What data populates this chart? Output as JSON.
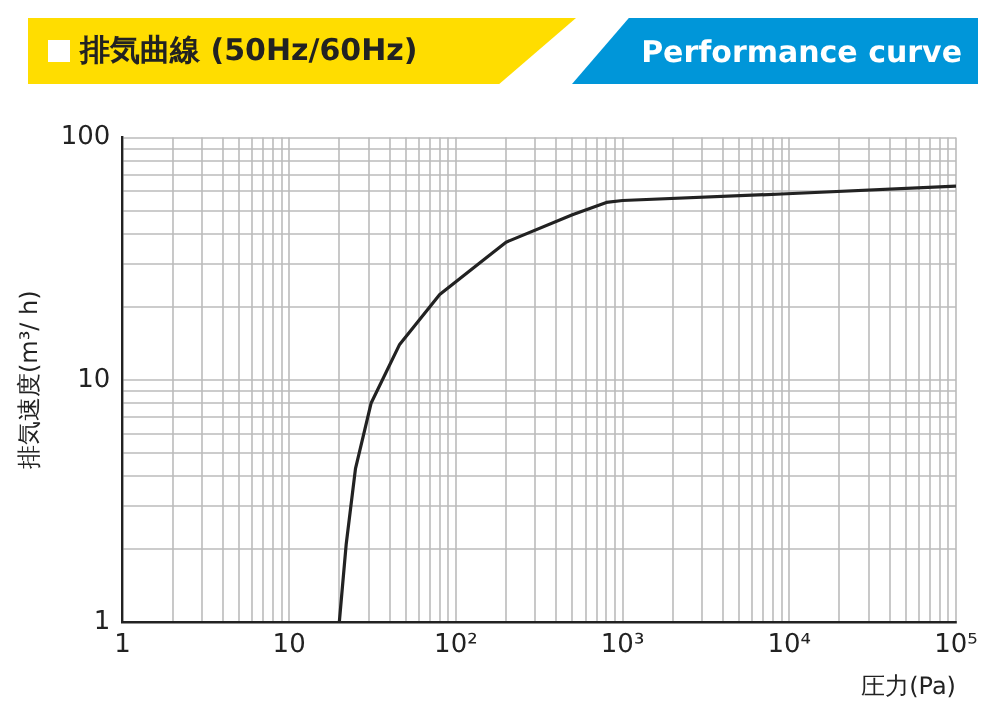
{
  "chart_data": {
    "type": "line",
    "title": "排気曲線 (50Hz/60Hz)",
    "subtitle": "Performance curve",
    "xlabel": "圧力(Pa)",
    "ylabel": "排気速度(m³/ h)",
    "x": [
      20,
      22,
      25,
      31,
      46,
      80,
      200,
      500,
      800,
      1000,
      9000,
      100000
    ],
    "series": [
      {
        "color": "#222222",
        "values": [
          1,
          2.1,
          4.3,
          8,
          14,
          22.5,
          37,
          48,
          54,
          55,
          58.5,
          63
        ]
      }
    ],
    "log": "xy",
    "xlim": [
      1,
      100000
    ],
    "ylim": [
      1,
      100
    ],
    "xticks": [
      1,
      {
        "value": 2,
        "label": null
      },
      {
        "value": 3,
        "label": null
      },
      {
        "value": 4,
        "label": null
      },
      {
        "value": 5,
        "label": null
      },
      {
        "value": 6,
        "label": null
      },
      {
        "value": 7,
        "label": null
      },
      {
        "value": 8,
        "label": null
      },
      {
        "value": 9,
        "label": null
      },
      10,
      {
        "value": 20,
        "label": null
      },
      {
        "value": 30,
        "label": null
      },
      {
        "value": 40,
        "label": null
      },
      {
        "value": 50,
        "label": null
      },
      {
        "value": 60,
        "label": null
      },
      {
        "value": 70,
        "label": null
      },
      {
        "value": 80,
        "label": null
      },
      {
        "value": 90,
        "label": null
      },
      {
        "value": 100,
        "label": "10²"
      },
      {
        "value": 200,
        "label": null
      },
      {
        "value": 300,
        "label": null
      },
      {
        "value": 400,
        "label": null
      },
      {
        "value": 500,
        "label": null
      },
      {
        "value": 600,
        "label": null
      },
      {
        "value": 700,
        "label": null
      },
      {
        "value": 800,
        "label": null
      },
      {
        "value": 900,
        "label": null
      },
      {
        "value": 1000,
        "label": "10³"
      },
      {
        "value": 2000,
        "label": null
      },
      {
        "value": 3000,
        "label": null
      },
      {
        "value": 4000,
        "label": null
      },
      {
        "value": 5000,
        "label": null
      },
      {
        "value": 6000,
        "label": null
      },
      {
        "value": 7000,
        "label": null
      },
      {
        "value": 8000,
        "label": null
      },
      {
        "value": 9000,
        "label": null
      },
      {
        "value": 10000,
        "label": "10⁴"
      },
      {
        "value": 20000,
        "label": null
      },
      {
        "value": 30000,
        "label": null
      },
      {
        "value": 40000,
        "label": null
      },
      {
        "value": 50000,
        "label": null
      },
      {
        "value": 60000,
        "label": null
      },
      {
        "value": 70000,
        "label": null
      },
      {
        "value": 80000,
        "label": null
      },
      {
        "value": 90000,
        "label": null
      },
      {
        "value": 100000,
        "label": "10⁵"
      }
    ],
    "yticks": [
      1,
      {
        "value": 2,
        "label": null
      },
      {
        "value": 3,
        "label": null
      },
      {
        "value": 4,
        "label": null
      },
      {
        "value": 5,
        "label": null
      },
      {
        "value": 6,
        "label": null
      },
      {
        "value": 7,
        "label": null
      },
      {
        "value": 8,
        "label": null
      },
      {
        "value": 9,
        "label": null
      },
      10,
      {
        "value": 20,
        "label": null
      },
      {
        "value": 30,
        "label": null
      },
      {
        "value": 40,
        "label": null
      },
      {
        "value": 50,
        "label": null
      },
      {
        "value": 60,
        "label": null
      },
      {
        "value": 70,
        "label": null
      },
      {
        "value": 80,
        "label": null
      },
      {
        "value": 90,
        "label": null
      },
      100
    ],
    "grid": true,
    "legend": false,
    "marker": "none",
    "line_style": "solid"
  }
}
